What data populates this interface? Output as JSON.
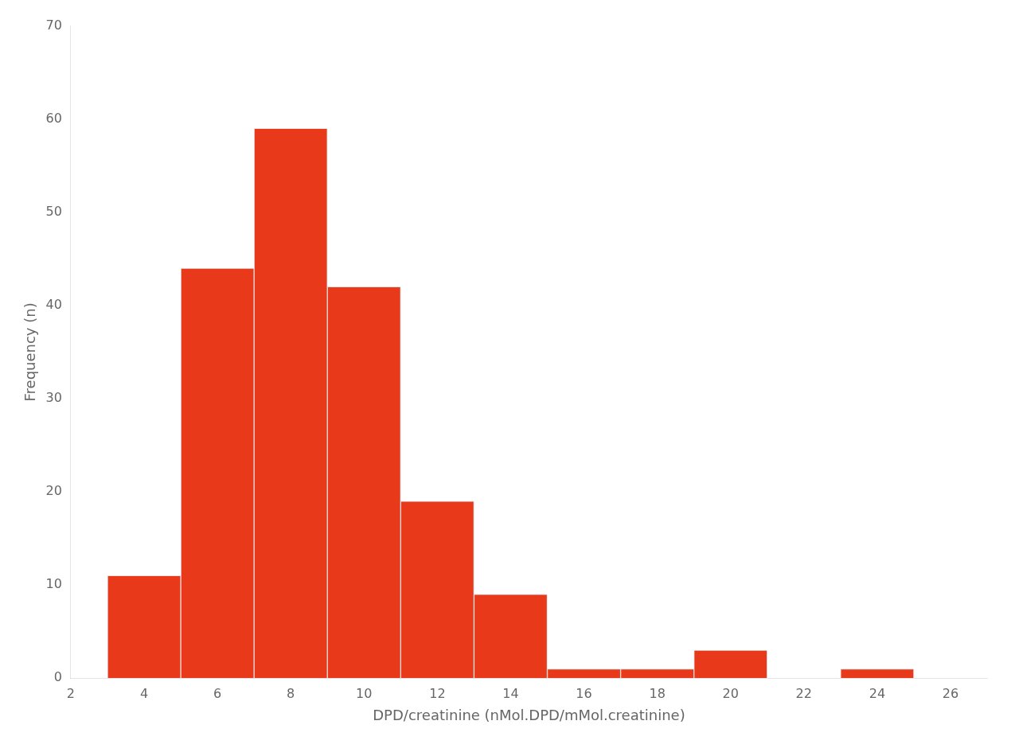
{
  "chart_data": {
    "type": "histogram",
    "bins": [
      3,
      5,
      7,
      9,
      11,
      13,
      15,
      17,
      19,
      21,
      23,
      25
    ],
    "values": [
      11,
      44,
      59,
      42,
      19,
      9,
      1,
      1,
      3,
      0,
      1
    ],
    "color": "#E8391A",
    "xlabel": "DPD/creatinine (nMol.DPD/mMol.creatinine)",
    "ylabel": "Frequency (n)",
    "xlim": [
      2,
      27
    ],
    "xticks": [
      2,
      4,
      6,
      8,
      10,
      12,
      14,
      16,
      18,
      20,
      22,
      24,
      26
    ],
    "ylim": [
      0,
      70
    ],
    "yticks": [
      0,
      10,
      20,
      30,
      40,
      50,
      60,
      70
    ],
    "grid": false
  }
}
